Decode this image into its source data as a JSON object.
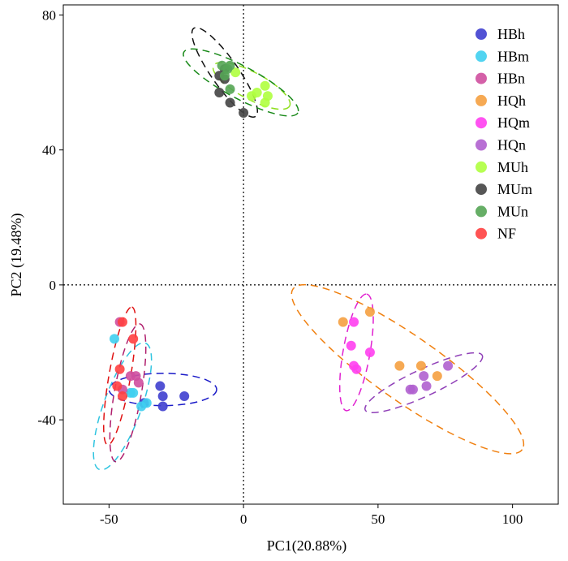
{
  "chart_data": {
    "type": "scatter",
    "title": "",
    "xlabel": "PC1(20.88%)",
    "ylabel": "PC2 (19.48%)",
    "xlim": [
      -67,
      117
    ],
    "ylim": [
      -65,
      83
    ],
    "xticks": [
      {
        "value": -50,
        "label": "-50"
      },
      {
        "value": 0,
        "label": "0"
      },
      {
        "value": 50,
        "label": "50"
      },
      {
        "value": 100,
        "label": "100"
      }
    ],
    "yticks": [
      {
        "value": 80,
        "label": "80"
      },
      {
        "value": 40,
        "label": "40"
      },
      {
        "value": 0,
        "label": "0"
      },
      {
        "value": -40,
        "label": "-40"
      }
    ],
    "reference_lines": {
      "x": 0,
      "y": 0,
      "style": "dotted"
    },
    "grid": false,
    "legend_position": "top-right",
    "series": [
      {
        "name": "HBh",
        "color": "#3f3fcf",
        "points": [
          [
            -31,
            -30
          ],
          [
            -30,
            -33
          ],
          [
            -37,
            -35
          ],
          [
            -30,
            -36
          ],
          [
            -22,
            -33
          ]
        ],
        "ellipse": {
          "center": [
            -30,
            -31
          ],
          "rx": 20,
          "ry": 6,
          "angle": 0,
          "color": "#1a1ac8"
        }
      },
      {
        "name": "HBm",
        "color": "#3fcfef",
        "points": [
          [
            -48,
            -16
          ],
          [
            -42,
            -32
          ],
          [
            -41,
            -32
          ],
          [
            -38,
            -36
          ],
          [
            -36,
            -35
          ]
        ],
        "ellipse": {
          "center": [
            -45,
            -36
          ],
          "rx": 25,
          "ry": 7,
          "angle": -70,
          "color": "#2ec4e0"
        }
      },
      {
        "name": "HBn",
        "color": "#cf4f9f",
        "points": [
          [
            -46,
            -11
          ],
          [
            -42,
            -27
          ],
          [
            -40,
            -27
          ],
          [
            -39,
            -29
          ],
          [
            -45,
            -31
          ]
        ],
        "ellipse": {
          "center": [
            -43,
            -32
          ],
          "rx": 26,
          "ry": 5,
          "angle": -80,
          "color": "#b0206e"
        }
      },
      {
        "name": "HQh",
        "color": "#f5a040",
        "points": [
          [
            37,
            -11
          ],
          [
            47,
            -8
          ],
          [
            58,
            -24
          ],
          [
            66,
            -24
          ],
          [
            72,
            -27
          ]
        ],
        "ellipse": {
          "center": [
            61,
            -25
          ],
          "rx": 52,
          "ry": 12,
          "angle": 35,
          "color": "#f08010"
        }
      },
      {
        "name": "HQm",
        "color": "#ff3ff0",
        "points": [
          [
            41,
            -11
          ],
          [
            40,
            -18
          ],
          [
            41,
            -24
          ],
          [
            42,
            -25
          ],
          [
            47,
            -20
          ]
        ],
        "ellipse": {
          "center": [
            42,
            -20
          ],
          "rx": 22,
          "ry": 5,
          "angle": -80,
          "color": "#e020d0"
        }
      },
      {
        "name": "HQn",
        "color": "#b060cf",
        "points": [
          [
            62,
            -31
          ],
          [
            63,
            -31
          ],
          [
            67,
            -27
          ],
          [
            68,
            -30
          ],
          [
            76,
            -24
          ]
        ],
        "ellipse": {
          "center": [
            67,
            -29
          ],
          "rx": 24,
          "ry": 5,
          "angle": -25,
          "color": "#9040b8"
        }
      },
      {
        "name": "MUh",
        "color": "#afff3f",
        "points": [
          [
            -3,
            63
          ],
          [
            3,
            56
          ],
          [
            5,
            57
          ],
          [
            8,
            59
          ],
          [
            8,
            54
          ],
          [
            9,
            56
          ]
        ],
        "ellipse": {
          "center": [
            3,
            59
          ],
          "rx": 16,
          "ry": 5,
          "angle": 28,
          "color": "#90e020"
        }
      },
      {
        "name": "MUm",
        "color": "#444444",
        "points": [
          [
            -9,
            62
          ],
          [
            -7,
            61
          ],
          [
            -9,
            57
          ],
          [
            -5,
            54
          ],
          [
            0,
            51
          ],
          [
            -7,
            64
          ]
        ],
        "ellipse": {
          "center": [
            -7,
            63
          ],
          "rx": 20,
          "ry": 5,
          "angle": 55,
          "color": "#111111"
        }
      },
      {
        "name": "MUn",
        "color": "#55a555",
        "points": [
          [
            -8,
            65
          ],
          [
            -6,
            64
          ],
          [
            -5,
            65
          ],
          [
            -5,
            58
          ],
          [
            -7,
            62
          ]
        ],
        "ellipse": {
          "center": [
            -1,
            60
          ],
          "rx": 24,
          "ry": 6,
          "angle": 28,
          "color": "#1a8a1a"
        }
      },
      {
        "name": "NF",
        "color": "#ff4040",
        "points": [
          [
            -45,
            -11
          ],
          [
            -41,
            -16
          ],
          [
            -46,
            -25
          ],
          [
            -47,
            -30
          ],
          [
            -45,
            -33
          ]
        ],
        "ellipse": {
          "center": [
            -46,
            -27
          ],
          "rx": 26,
          "ry": 4,
          "angle": -80,
          "color": "#e01010"
        }
      }
    ]
  }
}
